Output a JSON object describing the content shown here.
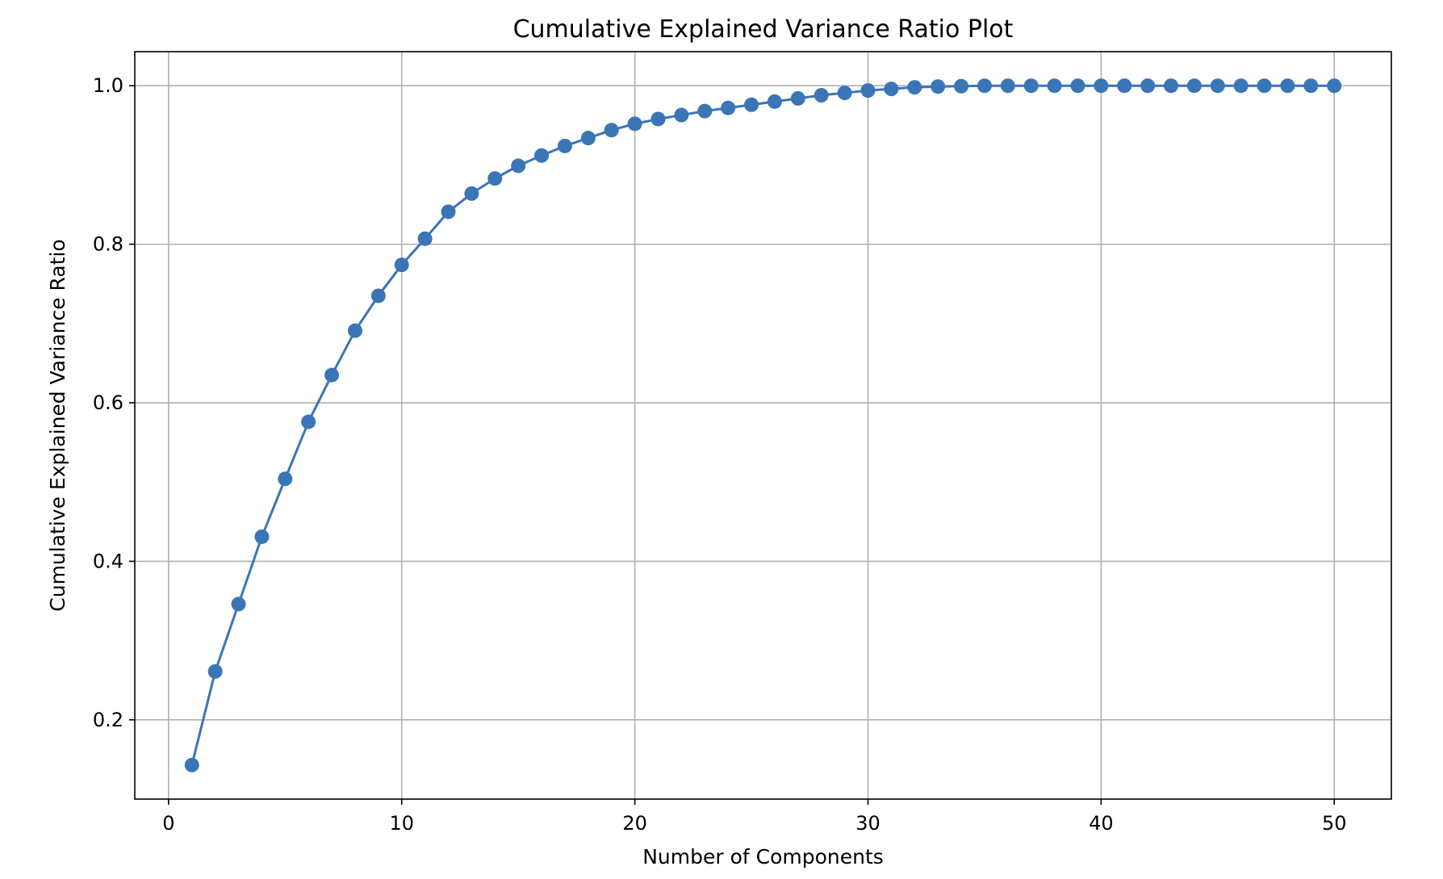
{
  "chart_data": {
    "type": "line",
    "title": "Cumulative Explained Variance Ratio Plot",
    "xlabel": "Number of Components",
    "ylabel": "Cumulative Explained Variance Ratio",
    "xlim": [
      -1.45,
      52.45
    ],
    "ylim": [
      0.1,
      1.043
    ],
    "xticks": [
      0,
      10,
      20,
      30,
      40,
      50
    ],
    "xtick_labels": [
      "0",
      "10",
      "20",
      "30",
      "40",
      "50"
    ],
    "yticks": [
      0.2,
      0.4,
      0.6,
      0.8,
      1.0
    ],
    "ytick_labels": [
      "0.2",
      "0.4",
      "0.6",
      "0.8",
      "1.0"
    ],
    "grid": true,
    "marker": "circle",
    "color": "#3a75b6",
    "series": [
      {
        "x": [
          1,
          2,
          3,
          4,
          5,
          6,
          7,
          8,
          9,
          10,
          11,
          12,
          13,
          14,
          15,
          16,
          17,
          18,
          19,
          20,
          21,
          22,
          23,
          24,
          25,
          26,
          27,
          28,
          29,
          30,
          31,
          32,
          33,
          34,
          35,
          36,
          37,
          38,
          39,
          40,
          41,
          42,
          43,
          44,
          45,
          46,
          47,
          48,
          49,
          50
        ],
        "y": [
          0.143,
          0.261,
          0.346,
          0.431,
          0.504,
          0.576,
          0.635,
          0.691,
          0.735,
          0.774,
          0.807,
          0.841,
          0.864,
          0.883,
          0.899,
          0.912,
          0.924,
          0.934,
          0.944,
          0.952,
          0.958,
          0.963,
          0.968,
          0.972,
          0.976,
          0.98,
          0.984,
          0.988,
          0.991,
          0.994,
          0.996,
          0.998,
          0.999,
          0.9995,
          1.0,
          1.0,
          1.0,
          1.0,
          1.0,
          1.0,
          1.0,
          1.0,
          1.0,
          1.0,
          1.0,
          1.0,
          1.0,
          1.0,
          1.0,
          1.0
        ]
      }
    ]
  }
}
